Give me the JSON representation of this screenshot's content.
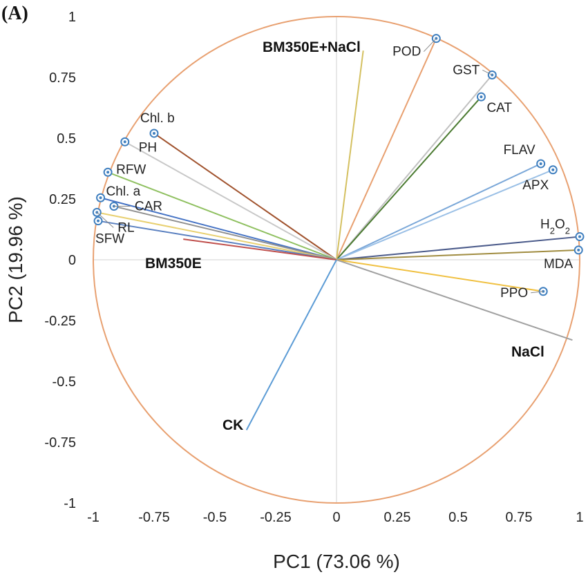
{
  "panel_label": "(A)",
  "chart_data": {
    "type": "scatter",
    "subtype": "pca-biplot",
    "title": "",
    "xlabel": "PC1 (73.06 %)",
    "ylabel": "PC2 (19.96 %)",
    "xlim": [
      -1,
      1
    ],
    "ylim": [
      -1,
      1
    ],
    "xticks": [
      "-1",
      "-0.75",
      "-0.5",
      "-0.25",
      "0",
      "0.25",
      "0.5",
      "0.75",
      "1"
    ],
    "yticks": [
      "1",
      "0.75",
      "0.5",
      "0.25",
      "0",
      "-0.25",
      "-0.5",
      "-0.75",
      "-1"
    ],
    "unit_circle": true,
    "colors": {
      "circle": "#e8a070",
      "marker": "#3f7fbf",
      "axis": "#d0d0d0"
    },
    "variables": [
      {
        "name": "POD",
        "x": 0.41,
        "y": 0.91,
        "color": "#e8a070"
      },
      {
        "name": "GST",
        "x": 0.64,
        "y": 0.76,
        "color": "#c0c0c0"
      },
      {
        "name": "CAT",
        "x": 0.595,
        "y": 0.67,
        "color": "#4a7a30"
      },
      {
        "name": "FLAV",
        "x": 0.84,
        "y": 0.395,
        "color": "#7aa7d8"
      },
      {
        "name": "APX",
        "x": 0.89,
        "y": 0.37,
        "color": "#9bc0e6"
      },
      {
        "name": "H2O2",
        "x": 1.0,
        "y": 0.095,
        "color": "#4a5a8a"
      },
      {
        "name": "MDA",
        "x": 0.995,
        "y": 0.04,
        "color": "#a08c40"
      },
      {
        "name": "PPO",
        "x": 0.85,
        "y": -0.13,
        "color": "#f0c040"
      },
      {
        "name": "Chl. b",
        "x": -0.75,
        "y": 0.52,
        "color": "#a0522d"
      },
      {
        "name": "PH",
        "x": -0.87,
        "y": 0.485,
        "color": "#c8c8c8"
      },
      {
        "name": "RFW",
        "x": -0.94,
        "y": 0.36,
        "color": "#8fc060"
      },
      {
        "name": "Chl. a",
        "x": -0.97,
        "y": 0.255,
        "color": "#4472c4"
      },
      {
        "name": "CAR",
        "x": -0.915,
        "y": 0.22,
        "color": "#909090"
      },
      {
        "name": "RL",
        "x": -0.985,
        "y": 0.195,
        "color": "#e8d070"
      },
      {
        "name": "SFW",
        "x": -0.98,
        "y": 0.16,
        "color": "#5a80c0"
      }
    ],
    "treatments": [
      {
        "name": "BM350E+NaCl",
        "x": 0.11,
        "y": 0.86,
        "color": "#d4c060"
      },
      {
        "name": "BM350E",
        "x": -0.63,
        "y": 0.085,
        "color": "#c0504d"
      },
      {
        "name": "NaCl",
        "x": 0.97,
        "y": -0.33,
        "color": "#a0a0a0"
      },
      {
        "name": "CK",
        "x": -0.37,
        "y": -0.7,
        "color": "#5b9bd5"
      }
    ]
  }
}
